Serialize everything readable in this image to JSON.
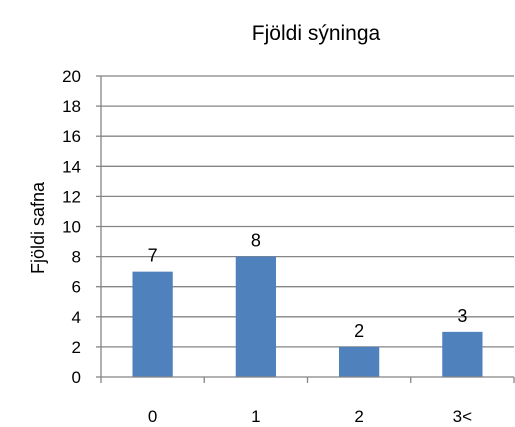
{
  "chart_data": {
    "type": "bar",
    "title": "Fjöldi sýninga",
    "xlabel": "",
    "ylabel": "Fjöldi safna",
    "categories": [
      "0",
      "1",
      "2",
      "3<"
    ],
    "values": [
      7,
      8,
      2,
      3
    ],
    "data_labels": [
      "7",
      "8",
      "2",
      "3"
    ],
    "ylim": [
      0,
      20
    ],
    "yticks": [
      "0",
      "2",
      "4",
      "6",
      "8",
      "10",
      "12",
      "14",
      "16",
      "18",
      "20"
    ],
    "grid": true,
    "legend": "none",
    "colors": {
      "bar": "#4f81bd",
      "grid": "#858585",
      "axis": "#858585"
    }
  }
}
